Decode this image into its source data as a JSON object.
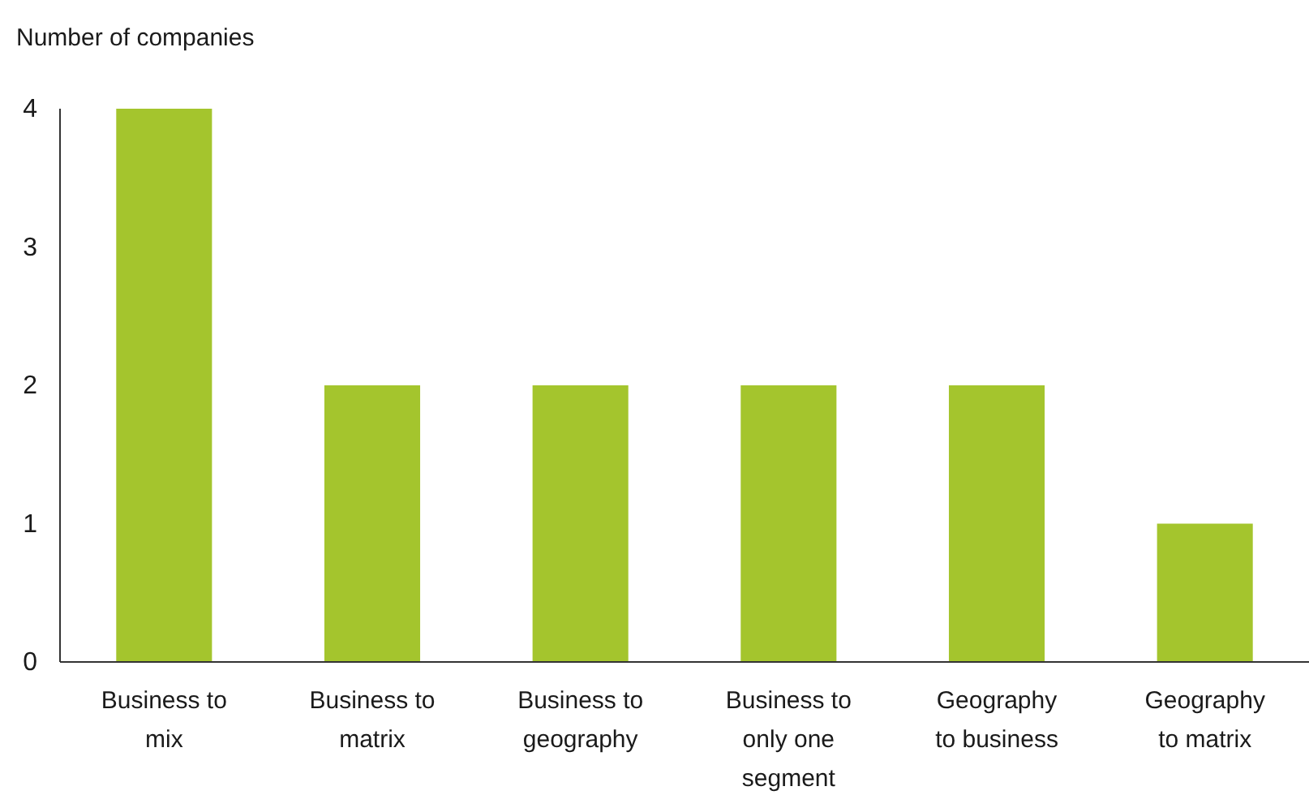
{
  "chart_data": {
    "type": "bar",
    "ylabel": "Number of companies",
    "categories": [
      "Business to mix",
      "Business to matrix",
      "Business to geography",
      "Business to only one segment",
      "Geography to business",
      "Geography to matrix"
    ],
    "values": [
      4,
      2,
      2,
      2,
      2,
      1
    ],
    "color": "#a4c52d",
    "ylim": [
      0,
      4
    ],
    "yticks": [
      0,
      1,
      2,
      3,
      4
    ],
    "grid": false
  }
}
